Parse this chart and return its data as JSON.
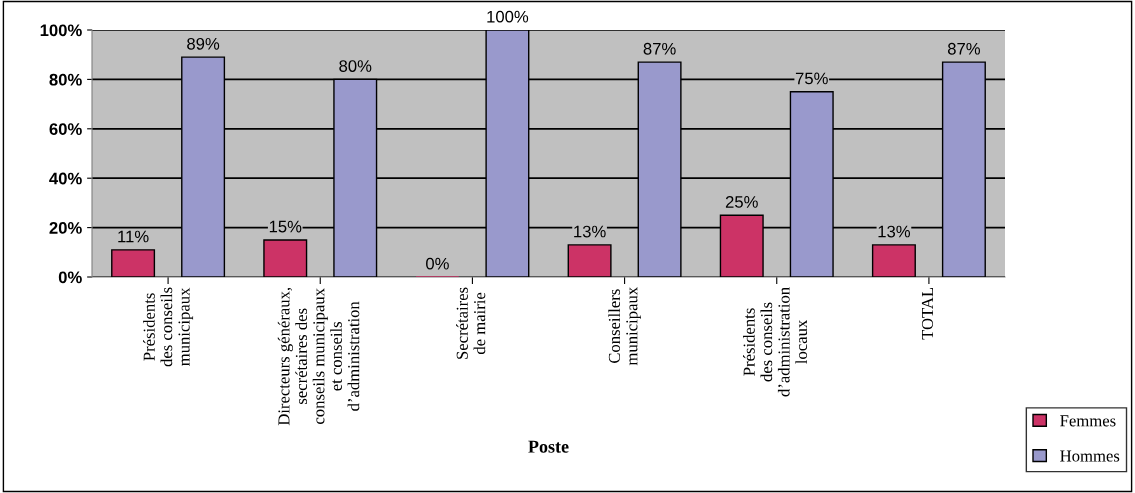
{
  "chart_data": {
    "type": "bar",
    "xlabel": "Poste",
    "categories": [
      "Présidents\ndes conseils\nmunicipaux",
      "Directeurs généraux,\nsecrétaires des\nconseils municipaux\net conseils\nd’administration",
      "Secrétaires\nde mairie",
      "Conseillers\nmunicipaux",
      "Présidents\ndes conseils\nd’administration\nlocaux",
      "TOTAL"
    ],
    "series": [
      {
        "name": "Femmes",
        "color": "#cc3366",
        "values": [
          11,
          15,
          0,
          13,
          25,
          13
        ],
        "value_labels": [
          "11%",
          "15%",
          "0%",
          "13%",
          "25%",
          "13%"
        ]
      },
      {
        "name": "Hommes",
        "color": "#9999cc",
        "values": [
          89,
          80,
          100,
          87,
          75,
          87
        ],
        "value_labels": [
          "89%",
          "80%",
          "100%",
          "87%",
          "75%",
          "87%"
        ]
      }
    ],
    "ylim": [
      0,
      100
    ],
    "yticks": [
      {
        "value": 0,
        "label": "0%"
      },
      {
        "value": 20,
        "label": "20%"
      },
      {
        "value": 40,
        "label": "40%"
      },
      {
        "value": 60,
        "label": "60%"
      },
      {
        "value": 80,
        "label": "80%"
      },
      {
        "value": 100,
        "label": "100%"
      }
    ],
    "grid": "y",
    "legend": "bottom right"
  }
}
